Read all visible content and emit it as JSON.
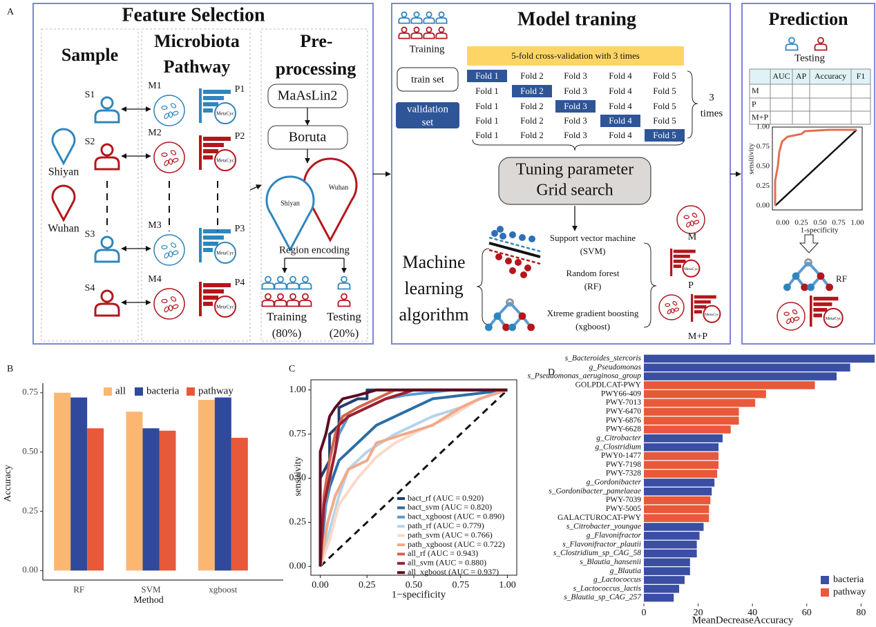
{
  "panel_a": {
    "label": "A",
    "feature_selection": {
      "title": "Feature Selection",
      "sample": "Sample",
      "microbiota_pathway": [
        "Microbiota",
        "Pathway"
      ],
      "preprocessing": [
        "Pre-",
        "processing"
      ],
      "samples": [
        "S1",
        "S2",
        "S3",
        "S4"
      ],
      "microbiota": [
        "M1",
        "M2",
        "M3",
        "M4"
      ],
      "pathways": [
        "P1",
        "P2",
        "P3",
        "P4"
      ],
      "metacyc": "MetaCyc",
      "regions": [
        "Shiyan",
        "Wuhan"
      ],
      "steps": [
        "MaAsLin2",
        "Boruta"
      ],
      "region_encoding": "Region encoding",
      "training": "Training",
      "testing": "Testing",
      "training_share": "(80%)",
      "testing_share": "(20%)"
    },
    "model_training": {
      "title": "Model traning",
      "training": "Training",
      "train_set": "train set",
      "validation_set": [
        "validation",
        "set"
      ],
      "cv": "5-fold cross-validation with 3 times",
      "folds": [
        [
          "Fold 1",
          "Fold 2",
          "Fold 3",
          "Fold 4",
          "Fold 5"
        ],
        [
          "Fold 1",
          "Fold 2",
          "Fold 3",
          "Fold 4",
          "Fold 5"
        ],
        [
          "Fold 1",
          "Fold 2",
          "Fold 3",
          "Fold 4",
          "Fold 5"
        ],
        [
          "Fold 1",
          "Fold 2",
          "Fold 3",
          "Fold 4",
          "Fold 5"
        ],
        [
          "Fold 1",
          "Fold 2",
          "Fold 3",
          "Fold 4",
          "Fold 5"
        ]
      ],
      "repeats": [
        "3",
        "times"
      ],
      "tuning": [
        "Tuning parameter",
        "Grid search"
      ],
      "ml": [
        "Machine",
        "learning",
        "algorithm"
      ],
      "algorithms": [
        [
          "Support vector machine",
          "(SVM)"
        ],
        [
          "Random forest",
          "(RF)"
        ],
        [
          "Xtreme gradient boosting",
          "(xgboost)"
        ]
      ],
      "inputs": [
        "M",
        "P",
        "M+P"
      ]
    },
    "prediction": {
      "title": "Prediction",
      "testing": "Testing",
      "table_header": [
        "AUC",
        "AP",
        "Accuracy",
        "F1"
      ],
      "table_rows": [
        "M",
        "P",
        "M+P"
      ],
      "roc_ylabel": "sensitivity",
      "roc_xlabel": "1-specificity",
      "roc_ticks": [
        "0.00",
        "0.25",
        "0.50",
        "0.75",
        "1.00"
      ],
      "model": "RF"
    }
  },
  "chart_data": [
    {
      "type": "bar",
      "panel": "B",
      "xlabel": "Method",
      "ylabel": "Accuracy",
      "categories": [
        "RF",
        "SVM",
        "xgboost"
      ],
      "series": [
        {
          "name": "all",
          "color": "#fbb771",
          "values": [
            0.75,
            0.67,
            0.72
          ]
        },
        {
          "name": "bacteria",
          "color": "#2f4a9c",
          "values": [
            0.73,
            0.6,
            0.73
          ]
        },
        {
          "name": "pathway",
          "color": "#e8593a",
          "values": [
            0.6,
            0.59,
            0.56
          ]
        }
      ],
      "ylim": [
        -0.04,
        0.79
      ],
      "yticks": [
        {
          "value": 0,
          "label": "0.00"
        },
        {
          "value": 0.25,
          "label": "0.25"
        },
        {
          "value": 0.5,
          "label": "0.50"
        },
        {
          "value": 0.75,
          "label": "0.75"
        }
      ]
    },
    {
      "type": "line",
      "panel": "C",
      "xlabel": "1−specificity",
      "ylabel": "sensitivity",
      "xlim": [
        -0.05,
        1.05
      ],
      "ylim": [
        -0.05,
        1.05
      ],
      "xticks": [
        {
          "value": 0,
          "label": "0.00"
        },
        {
          "value": 0.25,
          "label": "0.25"
        },
        {
          "value": 0.5,
          "label": "0.50"
        },
        {
          "value": 0.75,
          "label": "0.75"
        },
        {
          "value": 1,
          "label": "1.00"
        }
      ],
      "yticks": [
        {
          "value": 0,
          "label": "0.00"
        },
        {
          "value": 0.25,
          "label": "0.25"
        },
        {
          "value": 0.5,
          "label": "0.50"
        },
        {
          "value": 0.75,
          "label": "0.75"
        },
        {
          "value": 1,
          "label": "1.00"
        }
      ],
      "series": [
        {
          "name": "bact_rf (AUC = 0.920)",
          "color": "#1f3f73",
          "x": [
            0,
            0,
            0.05,
            0.05,
            0.1,
            0.1,
            0.2,
            0.25,
            0.25,
            0.35,
            1
          ],
          "values": [
            0,
            0.5,
            0.6,
            0.75,
            0.8,
            0.9,
            0.95,
            0.95,
            1,
            1,
            1
          ]
        },
        {
          "name": "bact_svm (AUC = 0.820)",
          "color": "#2c6ea3",
          "x": [
            0,
            0.02,
            0.05,
            0.1,
            0.15,
            0.2,
            0.3,
            0.4,
            0.5,
            0.6,
            1
          ],
          "values": [
            0,
            0.3,
            0.45,
            0.6,
            0.65,
            0.7,
            0.8,
            0.85,
            0.9,
            0.95,
            1
          ]
        },
        {
          "name": "bact_xgboost (AUC = 0.890)",
          "color": "#5b9bd0",
          "x": [
            0,
            0.03,
            0.06,
            0.1,
            0.15,
            0.25,
            0.35,
            0.45,
            0.7,
            1
          ],
          "values": [
            0,
            0.35,
            0.55,
            0.75,
            0.85,
            0.9,
            0.95,
            0.97,
            1,
            1
          ]
        },
        {
          "name": "path_rf (AUC = 0.779)",
          "color": "#b6d4ea",
          "x": [
            0,
            0.05,
            0.1,
            0.15,
            0.25,
            0.4,
            0.5,
            0.6,
            0.75,
            0.9,
            1
          ],
          "values": [
            0,
            0.2,
            0.4,
            0.55,
            0.65,
            0.75,
            0.8,
            0.85,
            0.9,
            0.97,
            1
          ]
        },
        {
          "name": "path_svm (AUC = 0.766)",
          "color": "#fad9c8",
          "x": [
            0,
            0.05,
            0.1,
            0.2,
            0.3,
            0.4,
            0.55,
            0.7,
            0.85,
            1
          ],
          "values": [
            0,
            0.15,
            0.35,
            0.5,
            0.62,
            0.7,
            0.78,
            0.85,
            0.95,
            1
          ]
        },
        {
          "name": "path_xgboost (AUC = 0.722)",
          "color": "#f2a98a",
          "x": [
            0,
            0.04,
            0.08,
            0.15,
            0.25,
            0.3,
            0.45,
            0.6,
            0.75,
            0.85,
            1
          ],
          "values": [
            0,
            0.25,
            0.4,
            0.55,
            0.6,
            0.7,
            0.75,
            0.8,
            0.9,
            0.95,
            1
          ]
        },
        {
          "name": "all_rf (AUC = 0.943)",
          "color": "#d2654f",
          "x": [
            0,
            0.02,
            0.05,
            0.08,
            0.12,
            0.2,
            0.3,
            0.4,
            1
          ],
          "values": [
            0,
            0.4,
            0.6,
            0.75,
            0.85,
            0.9,
            0.95,
            1,
            1
          ]
        },
        {
          "name": "all_svm (AUC = 0.880)",
          "color": "#9c1f2e",
          "x": [
            0,
            0.02,
            0.05,
            0.08,
            0.1,
            0.15,
            0.25,
            0.35,
            0.5,
            1
          ],
          "values": [
            0,
            0.35,
            0.5,
            0.65,
            0.8,
            0.85,
            0.9,
            0.95,
            1,
            1
          ]
        },
        {
          "name": "all_xgboost (AUC = 0.937)",
          "color": "#5c0b1f",
          "x": [
            0,
            0,
            0.03,
            0.05,
            0.08,
            0.12,
            0.2,
            0.3,
            1
          ],
          "values": [
            0,
            0.65,
            0.75,
            0.85,
            0.9,
            0.95,
            0.97,
            1,
            1
          ]
        }
      ]
    },
    {
      "type": "hbar",
      "panel": "D",
      "xlabel": "MeanDecreaseAccuracy",
      "xlim": [
        0,
        85
      ],
      "xticks": [
        0,
        20,
        40,
        60,
        80
      ],
      "categories": [
        "s_Bacteroides_stercoris",
        "g_Pseudomonas",
        "s_Pseudomonas_aeruginosa_group",
        "GOLPDLCAT-PWY",
        "PWY66-409",
        "PWY-7013",
        "PWY-6470",
        "PWY-6876",
        "PWY-6628",
        "g_Citrobacter",
        "g_Clostridium",
        "PWY0-1477",
        "PWY-7198",
        "PWY-7328",
        "g_Gordonibacter",
        "s_Gordonibacter_pamelaeae",
        "PWY-7039",
        "PWY-5005",
        "GALACTUROCAT-PWY",
        "s_Citrobacter_youngae",
        "g_Flavonifractor",
        "s_Flavonifractor_plautii",
        "s_Clostridium_sp_CAG_58",
        "s_Blautia_hansenii",
        "g_Blautia",
        "g_Lactococcus",
        "s_Lactococcus_lactis",
        "s_Blautia_sp_CAG_257"
      ],
      "series": [
        {
          "name": "bacteria",
          "color": "#3a4ea3",
          "values": [
            85,
            76,
            71,
            null,
            null,
            null,
            null,
            null,
            null,
            29,
            27.5,
            null,
            null,
            null,
            26,
            25,
            null,
            null,
            null,
            22,
            20.5,
            19.5,
            19.5,
            17,
            17,
            15,
            13,
            11
          ]
        },
        {
          "name": "pathway",
          "color": "#e8593a",
          "values": [
            null,
            null,
            null,
            63,
            45,
            41,
            35,
            35,
            32,
            null,
            null,
            27.5,
            27.5,
            27,
            null,
            null,
            24.5,
            24,
            24,
            null,
            null,
            null,
            null,
            null,
            null,
            null,
            null,
            null
          ]
        }
      ]
    }
  ]
}
